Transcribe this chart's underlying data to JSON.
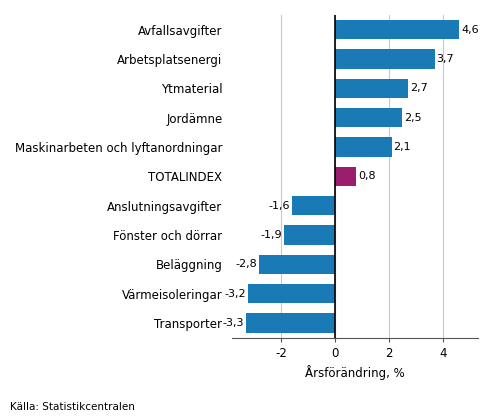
{
  "categories": [
    "Transporter",
    "Värmeisoleringar",
    "Beläggning",
    "Fönster och dörrar",
    "Anslutningsavgifter",
    "TOTALINDEX",
    "Maskinarbeten och lyftanordningar",
    "Jordämne",
    "Ytmaterial",
    "Arbetsplatsenergi",
    "Avfallsavgifter"
  ],
  "values": [
    -3.3,
    -3.2,
    -2.8,
    -1.9,
    -1.6,
    0.8,
    2.1,
    2.5,
    2.7,
    3.7,
    4.6
  ],
  "bar_colors": [
    "#1a7ab5",
    "#1a7ab5",
    "#1a7ab5",
    "#1a7ab5",
    "#1a7ab5",
    "#9b1d6e",
    "#1a7ab5",
    "#1a7ab5",
    "#1a7ab5",
    "#1a7ab5",
    "#1a7ab5"
  ],
  "xlabel": "Årsförändring, %",
  "xlim": [
    -3.8,
    5.3
  ],
  "xticks": [
    -2,
    0,
    2,
    4
  ],
  "source_text": "Källa: Statistikcentralen",
  "value_label_fontsize": 8,
  "axis_label_fontsize": 8.5,
  "tick_label_fontsize": 8.5,
  "cat_label_fontsize": 8.5,
  "background_color": "#ffffff",
  "grid_color": "#c8c8c8",
  "bar_height": 0.65
}
